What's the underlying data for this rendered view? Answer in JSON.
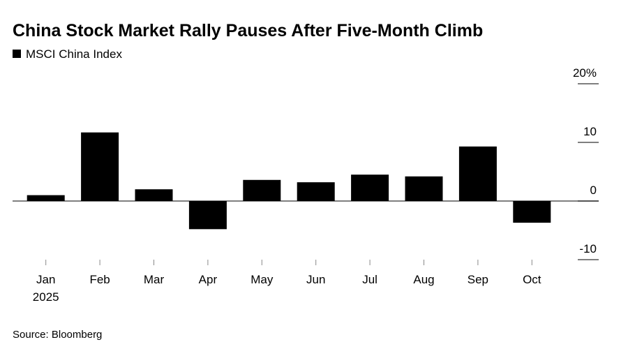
{
  "chart_data": {
    "type": "bar",
    "title": "China Stock Market Rally Pauses After Five-Month Climb",
    "series": [
      {
        "name": "MSCI China Index",
        "color": "#000000",
        "values": [
          1.0,
          11.7,
          2.0,
          -4.8,
          3.6,
          3.2,
          4.5,
          4.2,
          9.3,
          -3.7
        ]
      }
    ],
    "categories": [
      "Jan",
      "Feb",
      "Mar",
      "Apr",
      "May",
      "Jun",
      "Jul",
      "Aug",
      "Sep",
      "Oct"
    ],
    "year_label": "2025",
    "ylim": [
      -10,
      20
    ],
    "yticks": [
      {
        "value": 20,
        "label": "20%"
      },
      10,
      0,
      -10
    ],
    "source": "Source: Bloomberg"
  }
}
